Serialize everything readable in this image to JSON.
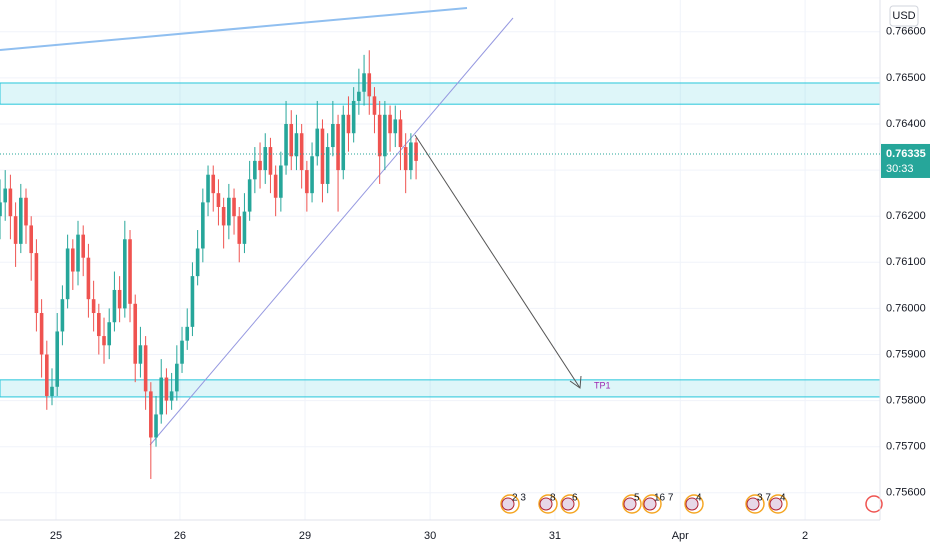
{
  "chart_data": {
    "type": "candlestick",
    "currency": "USD",
    "countdown": "30:33",
    "last_price": {
      "value": 0.76335,
      "label": "0.76335"
    },
    "annotation": "TP1",
    "zones": [
      [
        0.76443,
        0.76489
      ],
      [
        0.75808,
        0.75845
      ]
    ],
    "events": [
      "2 3",
      "8",
      "6",
      "5",
      "16 7",
      "4",
      "3 7",
      "4"
    ],
    "up_color": "#26a69a",
    "down_color": "#ef5350",
    "grid": true,
    "ylim": [
      0.75541,
      0.76669
    ],
    "yticks": [
      {
        "value": 0.766,
        "label": "0.76600"
      },
      {
        "value": 0.765,
        "label": "0.76500"
      },
      {
        "value": 0.764,
        "label": "0.76400"
      },
      {
        "value": 0.763,
        "label": "0.76300"
      },
      {
        "value": 0.762,
        "label": "0.76200"
      },
      {
        "value": 0.761,
        "label": "0.76100"
      },
      {
        "value": 0.76,
        "label": "0.76000"
      },
      {
        "value": 0.759,
        "label": "0.75900"
      },
      {
        "value": 0.758,
        "label": "0.75800"
      },
      {
        "value": 0.757,
        "label": "0.75700"
      },
      {
        "value": 0.756,
        "label": "0.75600"
      }
    ],
    "xlim": [
      0,
      169.2
    ],
    "xticks": [
      {
        "value": 10.77,
        "label": "25"
      },
      {
        "value": 34.6,
        "label": "26"
      },
      {
        "value": 58.65,
        "label": "29"
      },
      {
        "value": 82.7,
        "label": "30"
      },
      {
        "value": 106.7,
        "label": "31"
      },
      {
        "value": 130.8,
        "label": "Apr"
      },
      {
        "value": 154.8,
        "label": "2"
      }
    ],
    "x": [
      0,
      1,
      2,
      3,
      4,
      5,
      6,
      7,
      8,
      9,
      10,
      11,
      12,
      13,
      14,
      15,
      16,
      17,
      18,
      19,
      20,
      21,
      22,
      23,
      24,
      25,
      26,
      27,
      28,
      29,
      30,
      31,
      32,
      33,
      34,
      35,
      36,
      37,
      38,
      39,
      40,
      41,
      42,
      43,
      44,
      45,
      46,
      47,
      48,
      49,
      50,
      51,
      52,
      53,
      54,
      55,
      56,
      57,
      58,
      59,
      60,
      61,
      62,
      63,
      64,
      65,
      66,
      67,
      68,
      69,
      70,
      71,
      72,
      73,
      74,
      75,
      76,
      77,
      78,
      79,
      80
    ],
    "open": [
      0.762,
      0.7623,
      0.7626,
      0.762,
      0.7614,
      0.7624,
      0.7618,
      0.7612,
      0.7599,
      0.759,
      0.7581,
      0.7583,
      0.7595,
      0.7602,
      0.7613,
      0.7608,
      0.7616,
      0.7611,
      0.7602,
      0.7599,
      0.7594,
      0.7592,
      0.7597,
      0.7604,
      0.76,
      0.7615,
      0.7601,
      0.7588,
      0.7592,
      0.7582,
      0.7572,
      0.7577,
      0.7585,
      0.758,
      0.7582,
      0.7588,
      0.7593,
      0.7596,
      0.7607,
      0.7613,
      0.7623,
      0.7629,
      0.7625,
      0.7622,
      0.7618,
      0.7624,
      0.762,
      0.7614,
      0.7621,
      0.7628,
      0.7632,
      0.763,
      0.7635,
      0.7629,
      0.7624,
      0.7631,
      0.764,
      0.7633,
      0.7638,
      0.763,
      0.7625,
      0.7633,
      0.7639,
      0.7627,
      0.7635,
      0.764,
      0.763,
      0.7642,
      0.7638,
      0.7645,
      0.7647,
      0.7651,
      0.7646,
      0.7642,
      0.7633,
      0.7642,
      0.7638,
      0.7641,
      0.7635,
      0.763,
      0.7636
    ],
    "high": [
      0.7628,
      0.763,
      0.7629,
      0.7623,
      0.7627,
      0.7626,
      0.762,
      0.7615,
      0.7602,
      0.7593,
      0.7587,
      0.7599,
      0.7605,
      0.7616,
      0.7615,
      0.7619,
      0.7618,
      0.7614,
      0.7606,
      0.7601,
      0.7598,
      0.76,
      0.7608,
      0.7607,
      0.7619,
      0.7617,
      0.7603,
      0.7596,
      0.7594,
      0.7584,
      0.7581,
      0.7589,
      0.7587,
      0.7586,
      0.7592,
      0.7596,
      0.76,
      0.761,
      0.7617,
      0.7626,
      0.7631,
      0.7631,
      0.7628,
      0.7624,
      0.7627,
      0.7626,
      0.7622,
      0.7625,
      0.7632,
      0.7635,
      0.7636,
      0.7638,
      0.7637,
      0.7631,
      0.7634,
      0.7645,
      0.7643,
      0.7642,
      0.764,
      0.7632,
      0.7636,
      0.7645,
      0.7641,
      0.7638,
      0.7645,
      0.7642,
      0.7644,
      0.7646,
      0.7648,
      0.7652,
      0.7655,
      0.7656,
      0.7648,
      0.7645,
      0.7645,
      0.7644,
      0.7644,
      0.7643,
      0.7638,
      0.7638,
      0.7637
    ],
    "low": [
      0.7615,
      0.7619,
      0.7615,
      0.7609,
      0.7612,
      0.7614,
      0.7606,
      0.7595,
      0.7585,
      0.7578,
      0.7579,
      0.7581,
      0.7592,
      0.76,
      0.7604,
      0.7605,
      0.7607,
      0.7598,
      0.7595,
      0.759,
      0.7588,
      0.7589,
      0.7595,
      0.7597,
      0.7598,
      0.7597,
      0.7584,
      0.7585,
      0.7578,
      0.7563,
      0.757,
      0.7575,
      0.7577,
      0.7578,
      0.758,
      0.7586,
      0.7591,
      0.7594,
      0.7605,
      0.761,
      0.762,
      0.7621,
      0.7618,
      0.7613,
      0.7615,
      0.7616,
      0.761,
      0.7612,
      0.7619,
      0.7625,
      0.7626,
      0.7627,
      0.7625,
      0.762,
      0.7621,
      0.7629,
      0.763,
      0.763,
      0.7626,
      0.7621,
      0.7623,
      0.7631,
      0.7623,
      0.7625,
      0.7633,
      0.7621,
      0.7628,
      0.7634,
      0.7636,
      0.7642,
      0.7644,
      0.7642,
      0.7638,
      0.7627,
      0.763,
      0.7634,
      0.7635,
      0.763,
      0.7625,
      0.7628,
      0.7628
    ],
    "close": [
      0.7623,
      0.7626,
      0.762,
      0.7614,
      0.7624,
      0.7618,
      0.7612,
      0.7599,
      0.759,
      0.7581,
      0.7583,
      0.7595,
      0.7602,
      0.7613,
      0.7608,
      0.7616,
      0.7611,
      0.7602,
      0.7599,
      0.7594,
      0.7592,
      0.7597,
      0.7604,
      0.76,
      0.7615,
      0.7601,
      0.7588,
      0.7592,
      0.7582,
      0.7572,
      0.7577,
      0.7585,
      0.758,
      0.7582,
      0.7588,
      0.7593,
      0.7596,
      0.7607,
      0.7613,
      0.7623,
      0.7629,
      0.7625,
      0.7622,
      0.7618,
      0.7624,
      0.762,
      0.7614,
      0.7621,
      0.7628,
      0.7632,
      0.763,
      0.7635,
      0.7629,
      0.7624,
      0.7631,
      0.764,
      0.7633,
      0.7638,
      0.763,
      0.7625,
      0.7633,
      0.7639,
      0.7627,
      0.7635,
      0.764,
      0.763,
      0.7642,
      0.7638,
      0.7645,
      0.7647,
      0.7651,
      0.7646,
      0.7642,
      0.7633,
      0.7642,
      0.7638,
      0.7641,
      0.7635,
      0.763,
      0.7636,
      0.7632
    ]
  }
}
